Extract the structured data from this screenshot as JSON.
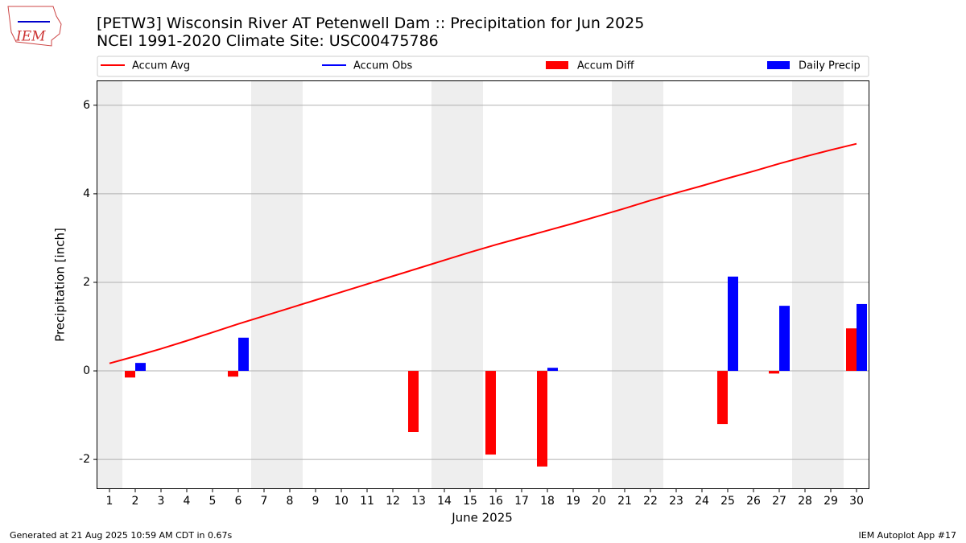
{
  "chart_data": {
    "type": "bar",
    "title": "[PETW3] Wisconsin River  AT Petenwell Dam :: Precipitation for Jun 2025",
    "subtitle": "NCEI 1991-2020 Climate Site: USC00475786",
    "xlabel": "June 2025",
    "ylabel": "Precipitation [inch]",
    "logo_text": "IEM",
    "footer_left": "Generated at 21 Aug 2025 10:59 AM CDT in 0.67s",
    "footer_right": "IEM Autoplot App #17",
    "categories": [
      "1",
      "2",
      "3",
      "4",
      "5",
      "6",
      "7",
      "8",
      "9",
      "10",
      "11",
      "12",
      "13",
      "14",
      "15",
      "16",
      "17",
      "18",
      "19",
      "20",
      "21",
      "22",
      "23",
      "24",
      "25",
      "26",
      "27",
      "28",
      "29",
      "30"
    ],
    "shaded_days": [
      "1",
      "7",
      "8",
      "14",
      "15",
      "21",
      "22",
      "28",
      "29"
    ],
    "ylim": [
      -2.67,
      6.56
    ],
    "yticks": [
      -2,
      0,
      2,
      4,
      6
    ],
    "grid": true,
    "series": [
      {
        "name": "Accum Avg",
        "color": "#ff0000",
        "type": "line",
        "values": [
          0.17,
          0.33,
          0.5,
          0.68,
          0.87,
          1.06,
          1.24,
          1.42,
          1.6,
          1.78,
          1.96,
          2.14,
          2.32,
          2.5,
          2.68,
          2.85,
          3.01,
          3.17,
          3.33,
          3.5,
          3.67,
          3.85,
          4.02,
          4.18,
          4.35,
          4.51,
          4.68,
          4.84,
          4.99,
          5.13
        ]
      },
      {
        "name": "Accum Obs",
        "color": "#0000ff",
        "type": "line",
        "values": [
          null,
          null,
          null,
          null,
          null,
          null,
          null,
          null,
          null,
          null,
          null,
          null,
          null,
          null,
          null,
          null,
          null,
          null,
          null,
          null,
          null,
          null,
          null,
          null,
          null,
          null,
          null,
          null,
          null,
          null
        ]
      },
      {
        "name": "Accum Diff",
        "color": "#ff0000",
        "type": "bar",
        "values": [
          null,
          -0.15,
          null,
          null,
          null,
          -0.13,
          null,
          null,
          null,
          null,
          null,
          null,
          -1.38,
          null,
          null,
          -1.89,
          null,
          -2.16,
          null,
          null,
          null,
          null,
          null,
          null,
          -1.2,
          null,
          -0.06,
          null,
          null,
          0.96
        ]
      },
      {
        "name": "Daily Precip",
        "color": "#0000ff",
        "type": "bar",
        "values": [
          null,
          0.18,
          null,
          null,
          null,
          0.75,
          null,
          null,
          null,
          null,
          null,
          null,
          null,
          null,
          null,
          null,
          null,
          0.07,
          null,
          null,
          null,
          null,
          null,
          null,
          2.13,
          null,
          1.47,
          null,
          null,
          1.51
        ]
      }
    ]
  }
}
